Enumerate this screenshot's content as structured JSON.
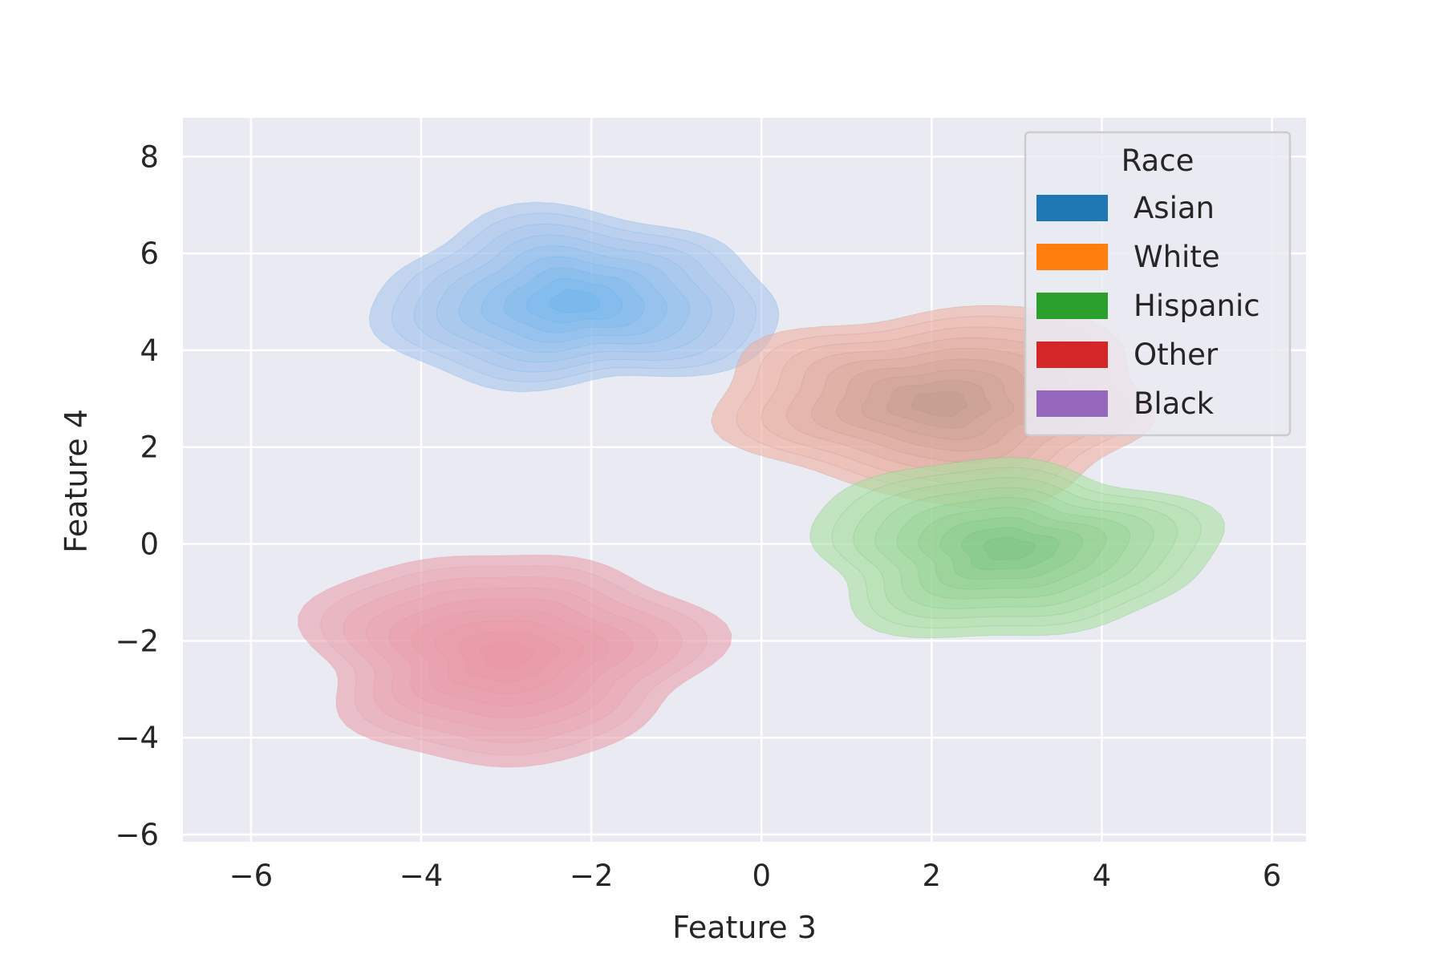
{
  "chart_data": {
    "type": "kde",
    "xlabel": "Feature 3",
    "ylabel": "Feature 4",
    "xlim": [
      -6.8,
      6.4
    ],
    "ylim": [
      -6.15,
      8.8
    ],
    "x_ticks": [
      -6,
      -4,
      -2,
      0,
      2,
      4,
      6
    ],
    "y_ticks": [
      -6,
      -4,
      -2,
      0,
      2,
      4,
      6,
      8
    ],
    "grid": true,
    "legend": {
      "title": "Race",
      "placement": "top-right",
      "entries": [
        {
          "label": "Asian",
          "color": "#1f77b4"
        },
        {
          "label": "White",
          "color": "#ff7f0e"
        },
        {
          "label": "Hispanic",
          "color": "#2ca02c"
        },
        {
          "label": "Other",
          "color": "#d62728"
        },
        {
          "label": "Black",
          "color": "#9467bd"
        }
      ]
    },
    "series": [
      {
        "name": "Other",
        "center": [
          -3.0,
          -2.3
        ],
        "spread": [
          1.35,
          1.25
        ],
        "outer_extent_x": [
          -5.7,
          -1.3
        ],
        "outer_extent_y": [
          -4.8,
          0.8
        ],
        "base_color": "#e8a0ac",
        "core_color": "#e9909e"
      },
      {
        "name": "Asian",
        "center": [
          -2.2,
          5.0
        ],
        "spread": [
          1.35,
          1.05
        ],
        "outer_extent_x": [
          -4.7,
          0.3
        ],
        "outer_extent_y": [
          2.0,
          7.8
        ],
        "base_color": "#a8c4ec",
        "core_color": "#5ab0ee"
      },
      {
        "name": "White",
        "center": [
          2.1,
          2.9
        ],
        "spread": [
          1.45,
          1.15
        ],
        "outer_extent_x": [
          -0.5,
          5.0
        ],
        "outer_extent_y": [
          -0.1,
          5.9
        ],
        "base_color": "#eeb0a4",
        "core_color": "#b09280"
      },
      {
        "name": "Hispanic",
        "center": [
          2.9,
          -0.1
        ],
        "spread": [
          1.35,
          1.05
        ],
        "outer_extent_x": [
          0.6,
          5.5
        ],
        "outer_extent_y": [
          -2.8,
          2.4
        ],
        "base_color": "#a8e0a0",
        "core_color": "#6cba76"
      }
    ]
  }
}
